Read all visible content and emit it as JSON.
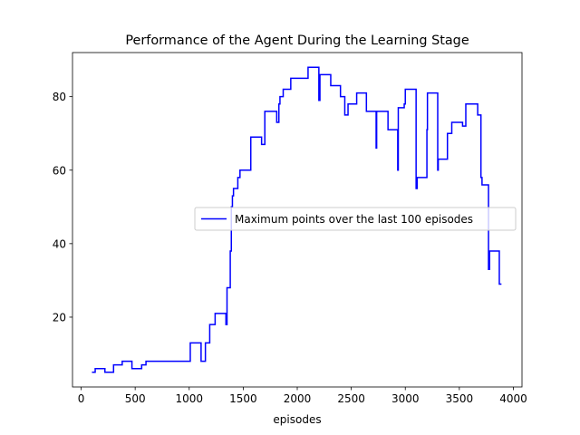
{
  "chart_data": {
    "type": "line",
    "title": "Performance of the Agent During the Learning Stage",
    "xlabel": "episodes",
    "ylabel": "",
    "xlim": [
      -80,
      4080
    ],
    "ylim": [
      1,
      92
    ],
    "xticks": [
      0,
      500,
      1000,
      1500,
      2000,
      2500,
      3000,
      3500,
      4000
    ],
    "yticks": [
      20,
      40,
      60,
      80
    ],
    "grid": false,
    "legend_position": "center-right",
    "series": [
      {
        "name": "Maximum points over the last 100 episodes",
        "color": "#0000ff",
        "step": true,
        "points": [
          [
            100,
            5
          ],
          [
            130,
            5
          ],
          [
            130,
            6
          ],
          [
            220,
            6
          ],
          [
            220,
            5
          ],
          [
            300,
            5
          ],
          [
            300,
            7
          ],
          [
            380,
            7
          ],
          [
            380,
            8
          ],
          [
            470,
            8
          ],
          [
            470,
            6
          ],
          [
            560,
            6
          ],
          [
            560,
            7
          ],
          [
            600,
            7
          ],
          [
            600,
            8
          ],
          [
            1010,
            8
          ],
          [
            1010,
            13
          ],
          [
            1110,
            13
          ],
          [
            1110,
            8
          ],
          [
            1150,
            8
          ],
          [
            1150,
            13
          ],
          [
            1190,
            13
          ],
          [
            1190,
            18
          ],
          [
            1240,
            18
          ],
          [
            1240,
            21
          ],
          [
            1340,
            21
          ],
          [
            1340,
            18
          ],
          [
            1350,
            18
          ],
          [
            1350,
            28
          ],
          [
            1380,
            28
          ],
          [
            1380,
            38
          ],
          [
            1390,
            38
          ],
          [
            1390,
            50
          ],
          [
            1400,
            50
          ],
          [
            1400,
            53
          ],
          [
            1410,
            53
          ],
          [
            1410,
            55
          ],
          [
            1450,
            55
          ],
          [
            1450,
            58
          ],
          [
            1470,
            58
          ],
          [
            1470,
            60
          ],
          [
            1570,
            60
          ],
          [
            1570,
            69
          ],
          [
            1670,
            69
          ],
          [
            1670,
            67
          ],
          [
            1700,
            67
          ],
          [
            1700,
            76
          ],
          [
            1810,
            76
          ],
          [
            1810,
            73
          ],
          [
            1830,
            73
          ],
          [
            1830,
            78
          ],
          [
            1840,
            78
          ],
          [
            1840,
            80
          ],
          [
            1870,
            80
          ],
          [
            1870,
            82
          ],
          [
            1940,
            82
          ],
          [
            1940,
            85
          ],
          [
            2100,
            85
          ],
          [
            2100,
            88
          ],
          [
            2200,
            88
          ],
          [
            2200,
            79
          ],
          [
            2210,
            79
          ],
          [
            2210,
            86
          ],
          [
            2310,
            86
          ],
          [
            2310,
            83
          ],
          [
            2400,
            83
          ],
          [
            2400,
            80
          ],
          [
            2440,
            80
          ],
          [
            2440,
            75
          ],
          [
            2470,
            75
          ],
          [
            2470,
            78
          ],
          [
            2550,
            78
          ],
          [
            2550,
            81
          ],
          [
            2640,
            81
          ],
          [
            2640,
            76
          ],
          [
            2730,
            76
          ],
          [
            2730,
            66
          ],
          [
            2735,
            66
          ],
          [
            2735,
            76
          ],
          [
            2840,
            76
          ],
          [
            2840,
            71
          ],
          [
            2930,
            71
          ],
          [
            2930,
            60
          ],
          [
            2935,
            60
          ],
          [
            2935,
            77
          ],
          [
            2990,
            77
          ],
          [
            2990,
            78
          ],
          [
            3000,
            78
          ],
          [
            3000,
            82
          ],
          [
            3100,
            82
          ],
          [
            3100,
            55
          ],
          [
            3110,
            55
          ],
          [
            3110,
            58
          ],
          [
            3200,
            58
          ],
          [
            3200,
            71
          ],
          [
            3205,
            71
          ],
          [
            3205,
            81
          ],
          [
            3300,
            81
          ],
          [
            3300,
            60
          ],
          [
            3305,
            60
          ],
          [
            3305,
            63
          ],
          [
            3390,
            63
          ],
          [
            3390,
            70
          ],
          [
            3430,
            70
          ],
          [
            3430,
            73
          ],
          [
            3530,
            73
          ],
          [
            3530,
            72
          ],
          [
            3560,
            72
          ],
          [
            3560,
            78
          ],
          [
            3670,
            78
          ],
          [
            3670,
            75
          ],
          [
            3700,
            75
          ],
          [
            3700,
            58
          ],
          [
            3710,
            58
          ],
          [
            3710,
            56
          ],
          [
            3770,
            56
          ],
          [
            3770,
            33
          ],
          [
            3780,
            33
          ],
          [
            3780,
            38
          ],
          [
            3870,
            38
          ],
          [
            3870,
            29
          ],
          [
            3890,
            29
          ]
        ]
      }
    ]
  }
}
